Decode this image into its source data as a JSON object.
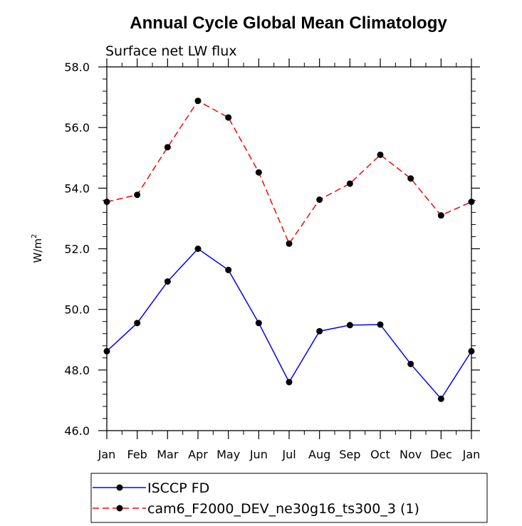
{
  "chart_data": {
    "type": "line",
    "title": "Annual Cycle Global Mean Climatology",
    "subtitle": "Surface net LW flux",
    "ylabel": "W/m",
    "ylabel_sup": "2",
    "xlabel": "",
    "categories": [
      "Jan",
      "Feb",
      "Mar",
      "Apr",
      "May",
      "Jun",
      "Jul",
      "Aug",
      "Sep",
      "Oct",
      "Nov",
      "Dec",
      "Jan"
    ],
    "ylim": [
      46.0,
      58.0
    ],
    "yticks": [
      46.0,
      48.0,
      50.0,
      52.0,
      54.0,
      56.0,
      58.0
    ],
    "ytick_labels": [
      "46.0",
      "48.0",
      "50.0",
      "52.0",
      "54.0",
      "56.0",
      "58.0"
    ],
    "grid": false,
    "legend_position": "bottom",
    "series": [
      {
        "name": "ISCCP FD",
        "color": "#0000ff",
        "line_style": "solid",
        "values": [
          48.62,
          49.55,
          50.92,
          52.0,
          51.3,
          49.55,
          47.6,
          49.28,
          49.48,
          49.5,
          48.2,
          47.05,
          48.62
        ]
      },
      {
        "name": "cam6_F2000_DEV_ne30g16_ts300_3 (1)",
        "color": "#ff0000",
        "line_style": "dashed",
        "values": [
          53.55,
          53.78,
          55.35,
          56.88,
          56.33,
          54.52,
          52.17,
          53.62,
          54.15,
          55.1,
          54.32,
          53.1,
          53.55
        ]
      }
    ]
  }
}
